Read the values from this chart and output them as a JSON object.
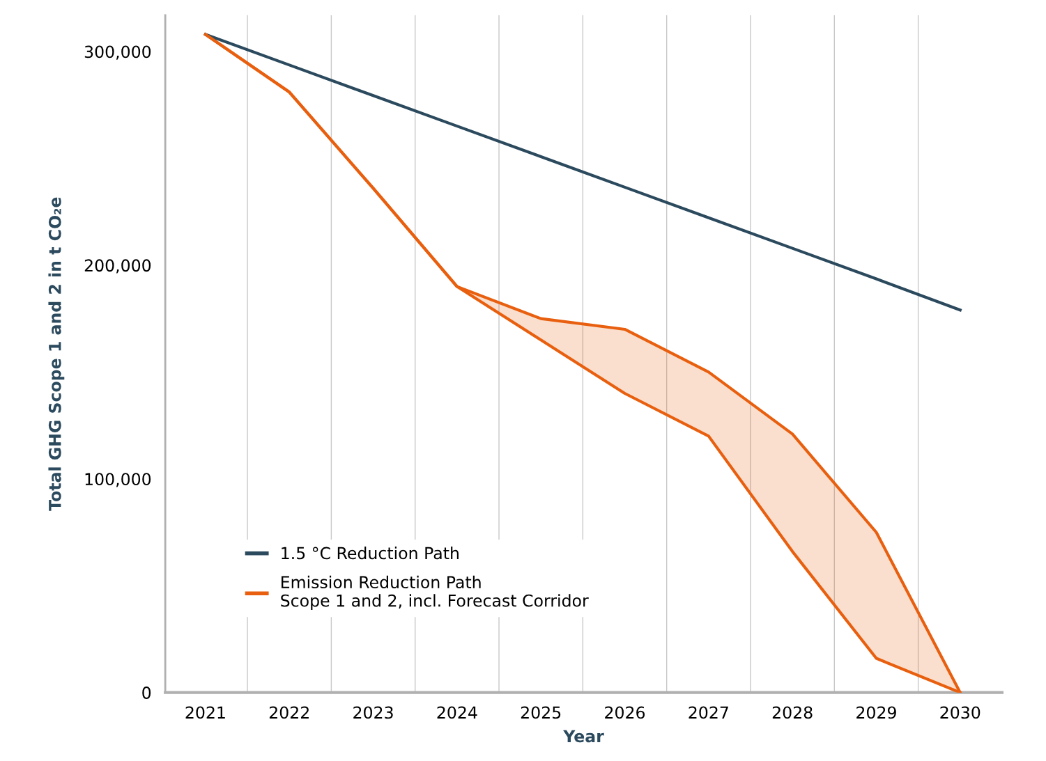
{
  "chart_data": {
    "type": "line",
    "xlabel": "Year",
    "ylabel": "Total GHG Scope 1 and 2 in t CO₂e",
    "categories": [
      "2021",
      "2022",
      "2023",
      "2024",
      "2025",
      "2026",
      "2027",
      "2028",
      "2029",
      "2030"
    ],
    "series": [
      {
        "name": "1.5 °C Reduction Path",
        "color": "#2c4a5e",
        "values": [
          308000,
          293700,
          279400,
          265100,
          250800,
          236500,
          222200,
          207900,
          193600,
          179000
        ]
      },
      {
        "name": "Emission Reduction Path\nScope 1 and 2, incl. Forecast Corridor",
        "color": "#e8600f",
        "values": [
          308000,
          281000,
          236000,
          190000,
          175000,
          170000,
          150000,
          121000,
          75000,
          0
        ],
        "lower": [
          308000,
          281000,
          236000,
          190000,
          165000,
          140000,
          120000,
          66000,
          16000,
          0
        ],
        "upper": [
          308000,
          281000,
          236000,
          190000,
          175000,
          170000,
          150000,
          121000,
          75000,
          0
        ]
      }
    ],
    "ylim": [
      0,
      317000
    ],
    "yticks": [
      {
        "value": 0,
        "label": "0"
      },
      {
        "value": 100000,
        "label": "100,000"
      },
      {
        "value": 200000,
        "label": "200,000"
      },
      {
        "value": 300000,
        "label": "300,000"
      }
    ],
    "grid": "x",
    "legend": "bottom left",
    "marker": "none",
    "line_style": "solid"
  }
}
